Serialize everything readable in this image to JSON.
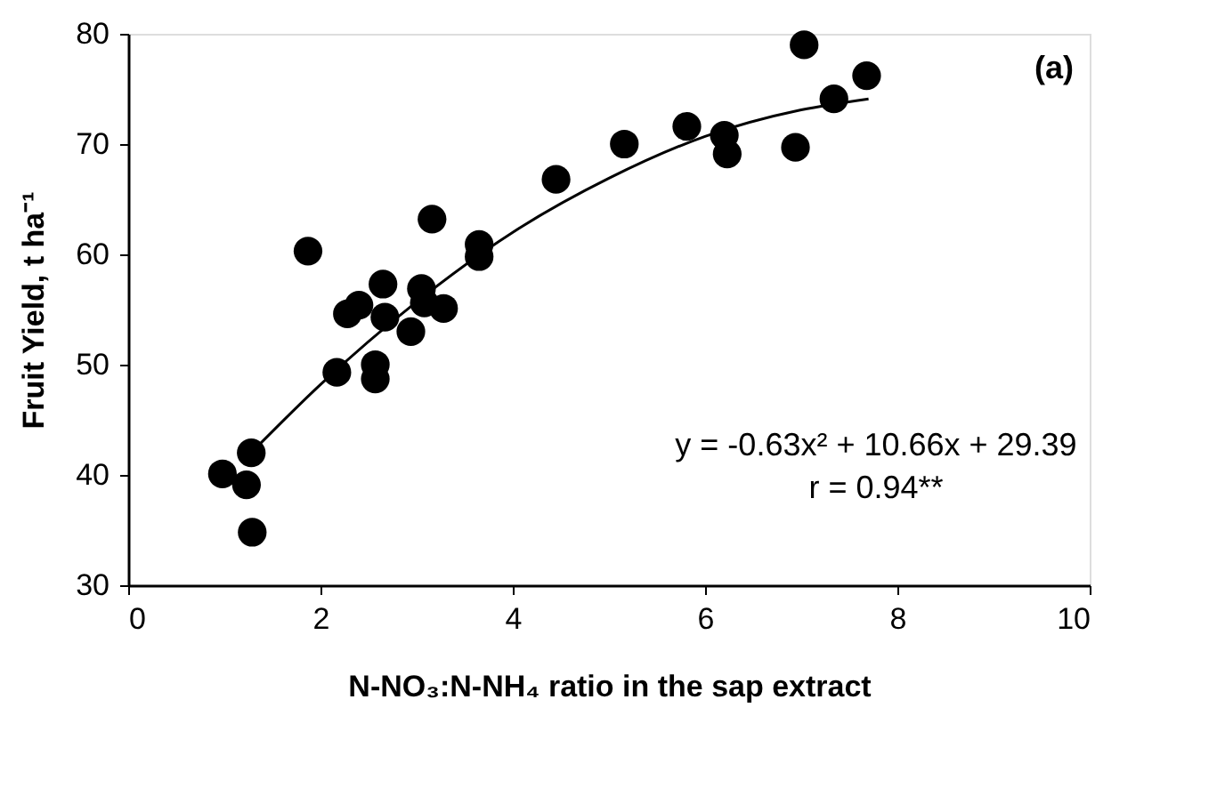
{
  "chart_data": {
    "type": "scatter",
    "xlabel": "N-NO₃:N-NH₄ ratio in the sap extract",
    "ylabel": "Fruit  Yield, t ha⁻¹",
    "xlim": [
      0,
      10
    ],
    "xticks": [
      0,
      2,
      4,
      6,
      8,
      10
    ],
    "ylim": [
      30,
      80
    ],
    "yticks": [
      30,
      40,
      50,
      60,
      70,
      80
    ],
    "grid": false,
    "marker": "circle",
    "series": [
      {
        "color": "#000000",
        "x": [
          1.87,
          3.16,
          3.65,
          3.65,
          2.65,
          3.05,
          2.28,
          2.4,
          2.67,
          2.94,
          3.28,
          3.08,
          2.17,
          2.57,
          2.57,
          1.28,
          0.98,
          1.23,
          1.29,
          4.45,
          5.16,
          5.81,
          6.2,
          6.23,
          6.94,
          7.03,
          7.34,
          7.68
        ],
        "values": [
          60.3,
          63.2,
          60.9,
          59.8,
          57.3,
          56.9,
          54.6,
          55.4,
          54.3,
          53.0,
          55.1,
          55.6,
          49.3,
          50.0,
          48.7,
          42.0,
          40.1,
          39.1,
          34.8,
          66.8,
          70.0,
          71.6,
          70.8,
          69.1,
          69.7,
          79.0,
          74.1,
          76.2
        ]
      },
      {
        "type": "line",
        "color": "#000000",
        "line_style": "solid",
        "marker": "none",
        "x": [
          1.3,
          2,
          3,
          4,
          5,
          6,
          7,
          7.7
        ],
        "values": [
          42.2,
          48.2,
          55.7,
          62.0,
          66.9,
          70.7,
          73.1,
          74.1
        ]
      }
    ],
    "annotations": [
      "y = -0.63x² + 10.66x + 29.39",
      "r = 0.94**",
      "(a)"
    ]
  }
}
